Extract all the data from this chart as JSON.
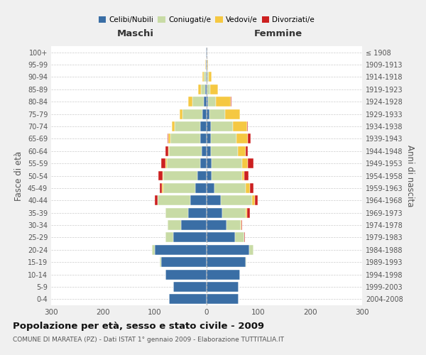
{
  "age_groups": [
    "0-4",
    "5-9",
    "10-14",
    "15-19",
    "20-24",
    "25-29",
    "30-34",
    "35-39",
    "40-44",
    "45-49",
    "50-54",
    "55-59",
    "60-64",
    "65-69",
    "70-74",
    "75-79",
    "80-84",
    "85-89",
    "90-94",
    "95-99",
    "100+"
  ],
  "birth_years": [
    "2004-2008",
    "1999-2003",
    "1994-1998",
    "1989-1993",
    "1984-1988",
    "1979-1983",
    "1974-1978",
    "1969-1973",
    "1964-1968",
    "1959-1963",
    "1954-1958",
    "1949-1953",
    "1944-1948",
    "1939-1943",
    "1934-1938",
    "1929-1933",
    "1924-1928",
    "1919-1923",
    "1914-1918",
    "1909-1913",
    "≤ 1908"
  ],
  "color_celibi": "#3a6ea5",
  "color_coniugati": "#c8dba5",
  "color_vedovi": "#f5c842",
  "color_divorziati": "#cc2020",
  "title": "Popolazione per età, sesso e stato civile - 2009",
  "subtitle": "COMUNE DI MARATEA (PZ) - Dati ISTAT 1° gennaio 2009 - Elaborazione TUTTITALIA.IT",
  "xlabel_left": "Maschi",
  "xlabel_right": "Femmine",
  "ylabel_left": "Fasce di età",
  "ylabel_right": "Anni di nascita",
  "xlim": 300,
  "bg_color": "#f0f0f0",
  "plot_bg": "#ffffff",
  "males_celibi": [
    72,
    65,
    80,
    88,
    100,
    65,
    50,
    35,
    32,
    22,
    18,
    12,
    10,
    12,
    12,
    8,
    5,
    3,
    2,
    1,
    1
  ],
  "males_coniugati": [
    0,
    0,
    0,
    2,
    5,
    14,
    26,
    44,
    62,
    62,
    65,
    65,
    62,
    58,
    50,
    38,
    22,
    8,
    3,
    1,
    0
  ],
  "males_vedovi": [
    0,
    0,
    0,
    0,
    0,
    0,
    0,
    0,
    1,
    2,
    2,
    2,
    2,
    4,
    5,
    6,
    8,
    5,
    3,
    1,
    0
  ],
  "males_divorziati": [
    0,
    0,
    0,
    0,
    0,
    0,
    0,
    0,
    5,
    5,
    8,
    8,
    5,
    2,
    0,
    0,
    0,
    0,
    0,
    0,
    0
  ],
  "females_nubili": [
    62,
    62,
    65,
    75,
    82,
    55,
    38,
    30,
    28,
    15,
    10,
    10,
    8,
    8,
    8,
    5,
    3,
    2,
    2,
    1,
    1
  ],
  "females_coniugate": [
    0,
    0,
    0,
    2,
    8,
    18,
    28,
    46,
    60,
    60,
    58,
    58,
    52,
    50,
    42,
    30,
    15,
    5,
    2,
    0,
    0
  ],
  "females_vedove": [
    0,
    0,
    0,
    0,
    0,
    0,
    1,
    2,
    5,
    8,
    5,
    12,
    15,
    22,
    28,
    30,
    28,
    15,
    5,
    2,
    1
  ],
  "females_divorziate": [
    0,
    0,
    0,
    0,
    0,
    1,
    2,
    5,
    5,
    8,
    8,
    10,
    5,
    5,
    2,
    0,
    2,
    0,
    0,
    0,
    0
  ]
}
